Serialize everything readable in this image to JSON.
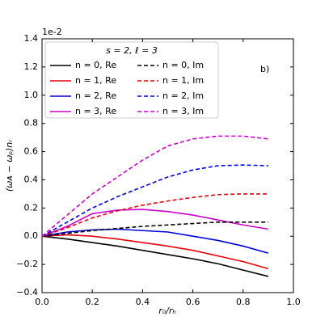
{
  "chart_data": {
    "type": "line",
    "offset_label": "1e-2",
    "annotation": "b)",
    "x_label": "r₀/rₕ",
    "y_label": "(ωᴀ − ωₚ)nᵣ",
    "legend_title": "s = 2, ℓ = 3",
    "x": [
      0,
      0.1,
      0.2,
      0.3,
      0.4,
      0.5,
      0.6,
      0.7,
      0.8,
      0.9
    ],
    "series": [
      {
        "name": "n = 0, Re",
        "color": "#000000",
        "dashed": false,
        "values": [
          0,
          -0.02,
          -0.045,
          -0.07,
          -0.1,
          -0.13,
          -0.16,
          -0.195,
          -0.24,
          -0.285
        ]
      },
      {
        "name": "n = 1, Re",
        "color": "#e8000b",
        "dashed": false,
        "values": [
          0,
          0.01,
          0.0,
          -0.02,
          -0.045,
          -0.07,
          -0.1,
          -0.14,
          -0.18,
          -0.23
        ]
      },
      {
        "name": "n = 2, Re",
        "color": "#0000dd",
        "dashed": false,
        "values": [
          0,
          0.03,
          0.045,
          0.05,
          0.04,
          0.03,
          0.0,
          -0.03,
          -0.07,
          -0.12
        ]
      },
      {
        "name": "n = 3, Re",
        "color": "#cc00cc",
        "dashed": false,
        "values": [
          0,
          0.07,
          0.16,
          0.185,
          0.19,
          0.175,
          0.15,
          0.115,
          0.08,
          0.05
        ]
      },
      {
        "name": "n = 0, Im",
        "color": "#000000",
        "dashed": true,
        "values": [
          0,
          0.02,
          0.04,
          0.055,
          0.07,
          0.08,
          0.09,
          0.1,
          0.1,
          0.1
        ]
      },
      {
        "name": "n = 1, Im",
        "color": "#e8000b",
        "dashed": true,
        "values": [
          0,
          0.06,
          0.13,
          0.18,
          0.22,
          0.25,
          0.275,
          0.295,
          0.3,
          0.3
        ]
      },
      {
        "name": "n = 2, Im",
        "color": "#0000dd",
        "dashed": true,
        "values": [
          0,
          0.1,
          0.2,
          0.28,
          0.35,
          0.42,
          0.47,
          0.5,
          0.505,
          0.5
        ]
      },
      {
        "name": "n = 3, Im",
        "color": "#cc00cc",
        "dashed": true,
        "values": [
          0,
          0.15,
          0.3,
          0.42,
          0.54,
          0.64,
          0.69,
          0.71,
          0.71,
          0.69
        ]
      }
    ],
    "xlim": [
      0,
      1.0
    ],
    "xticks": [
      {
        "value": 0,
        "label": "0.0"
      },
      0.2,
      0.4,
      0.6,
      0.8,
      {
        "value": 1.0,
        "label": "1.0"
      }
    ],
    "ylim": [
      -0.4,
      1.4
    ],
    "yticks": [
      {
        "value": -0.4,
        "label": "−0.4"
      },
      {
        "value": -0.2,
        "label": "−0.2"
      },
      {
        "value": 0,
        "label": "0.0"
      },
      0.2,
      0.4,
      0.6,
      0.8,
      {
        "value": 1.0,
        "label": "1.0"
      },
      1.2,
      1.4
    ]
  }
}
